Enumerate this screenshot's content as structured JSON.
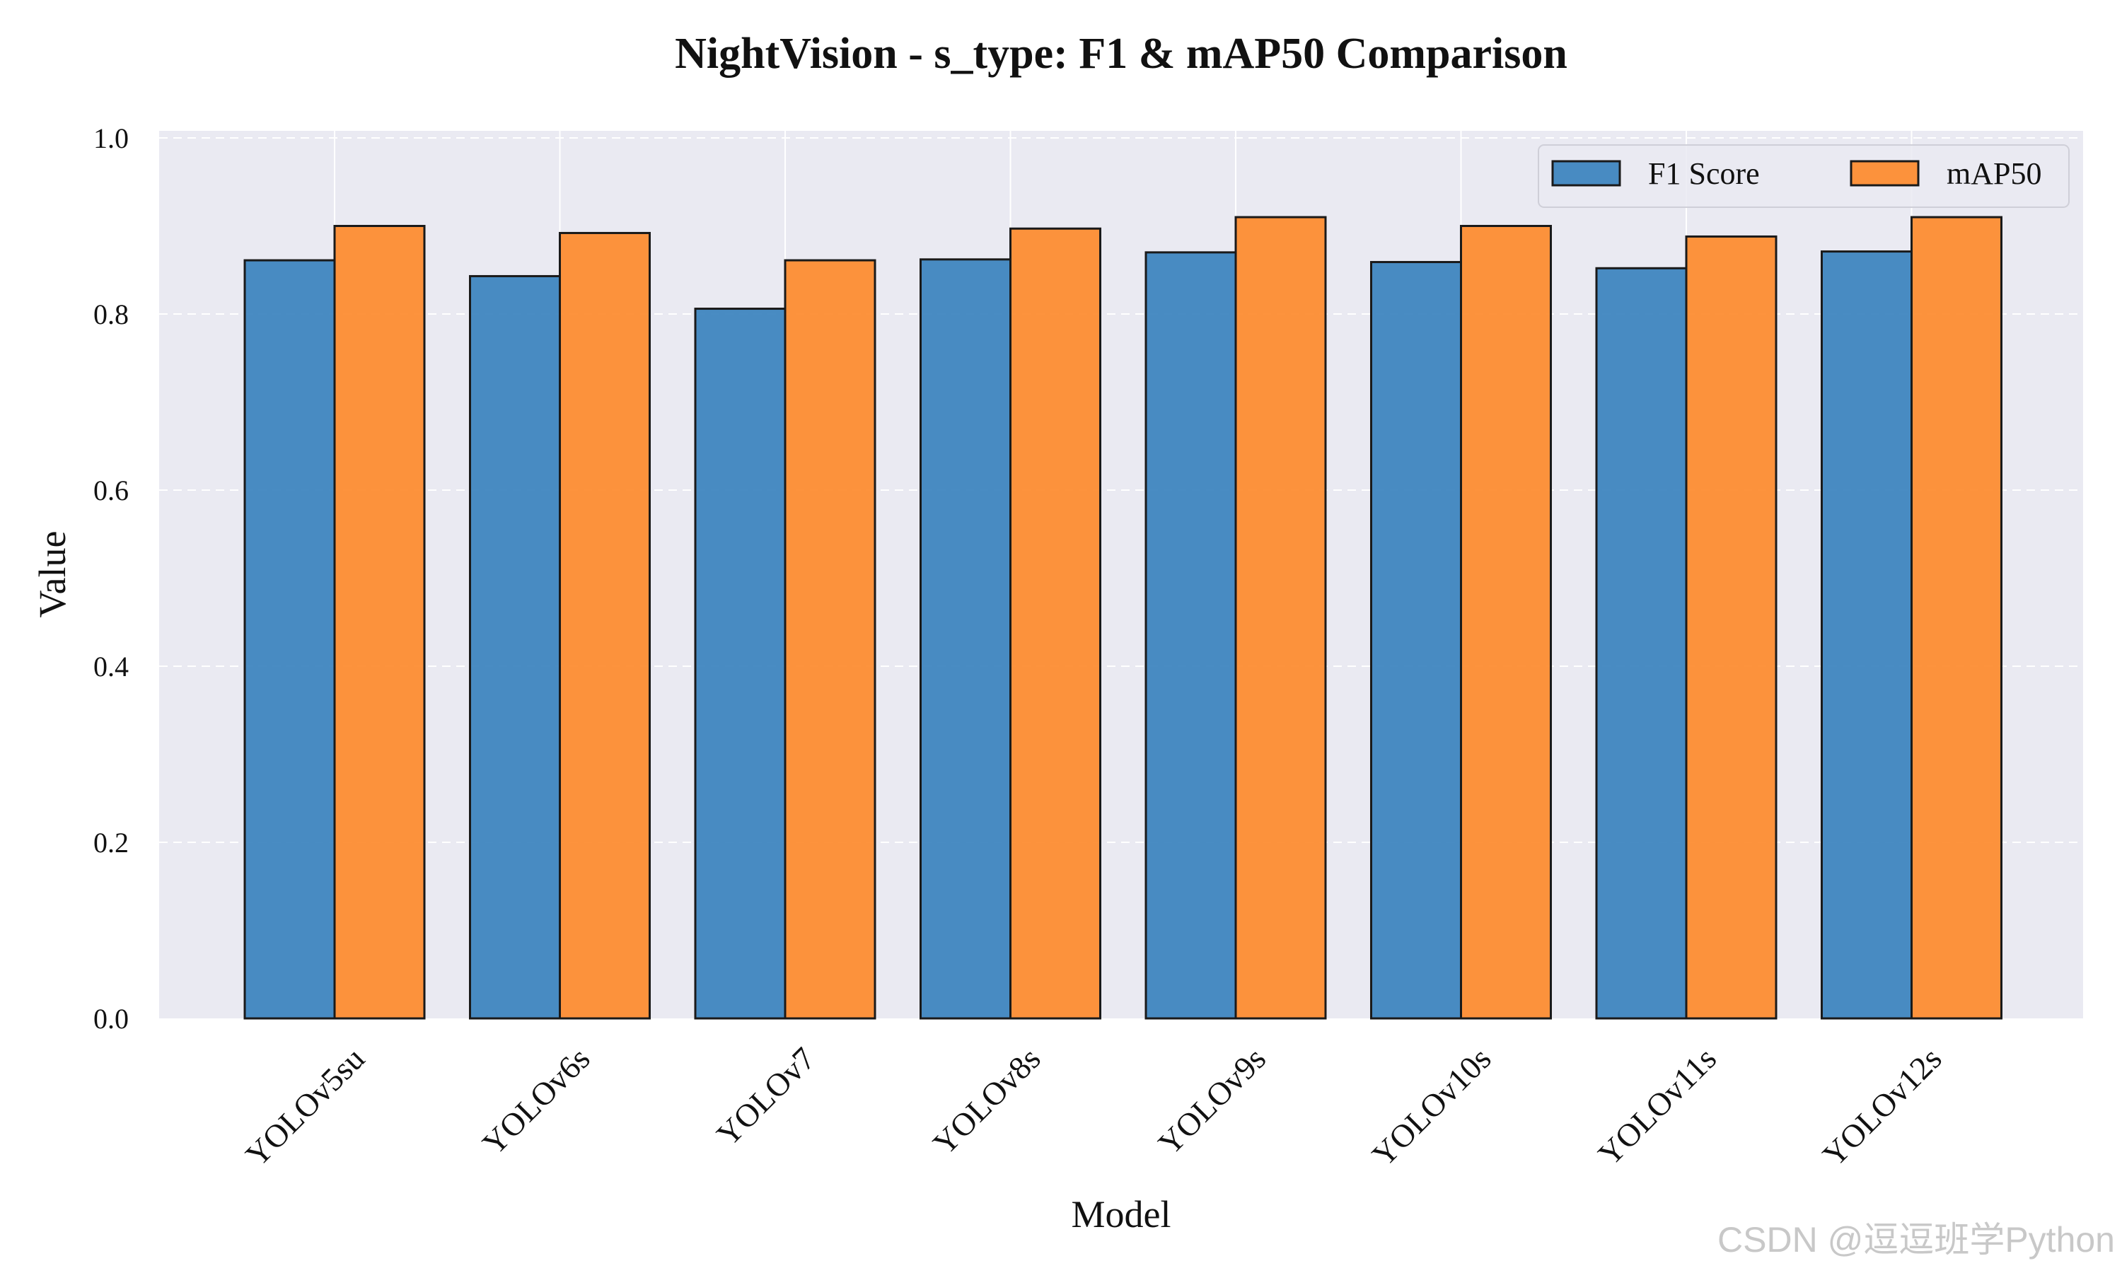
{
  "chart_data": {
    "type": "bar",
    "title": "NightVision - s_type: F1 & mAP50 Comparison",
    "xlabel": "Model",
    "ylabel": "Value",
    "ylim": [
      0,
      1.0
    ],
    "yticks": [
      0.0,
      0.2,
      0.4,
      0.6,
      0.8,
      1.0
    ],
    "grid": true,
    "legend_position": "top-right",
    "categories": [
      "YOLOv5su",
      "YOLOv6s",
      "YOLOv7",
      "YOLOv8s",
      "YOLOv9s",
      "YOLOv10s",
      "YOLOv11s",
      "YOLOv12s"
    ],
    "series": [
      {
        "name": "F1 Score",
        "color": "#3a82be",
        "values": [
          0.861,
          0.843,
          0.806,
          0.862,
          0.87,
          0.859,
          0.852,
          0.871
        ]
      },
      {
        "name": "mAP50",
        "color": "#fd8a2c",
        "values": [
          0.9,
          0.892,
          0.861,
          0.897,
          0.91,
          0.9,
          0.888,
          0.91
        ]
      }
    ]
  },
  "watermark": "CSDN @逗逗班学Python"
}
